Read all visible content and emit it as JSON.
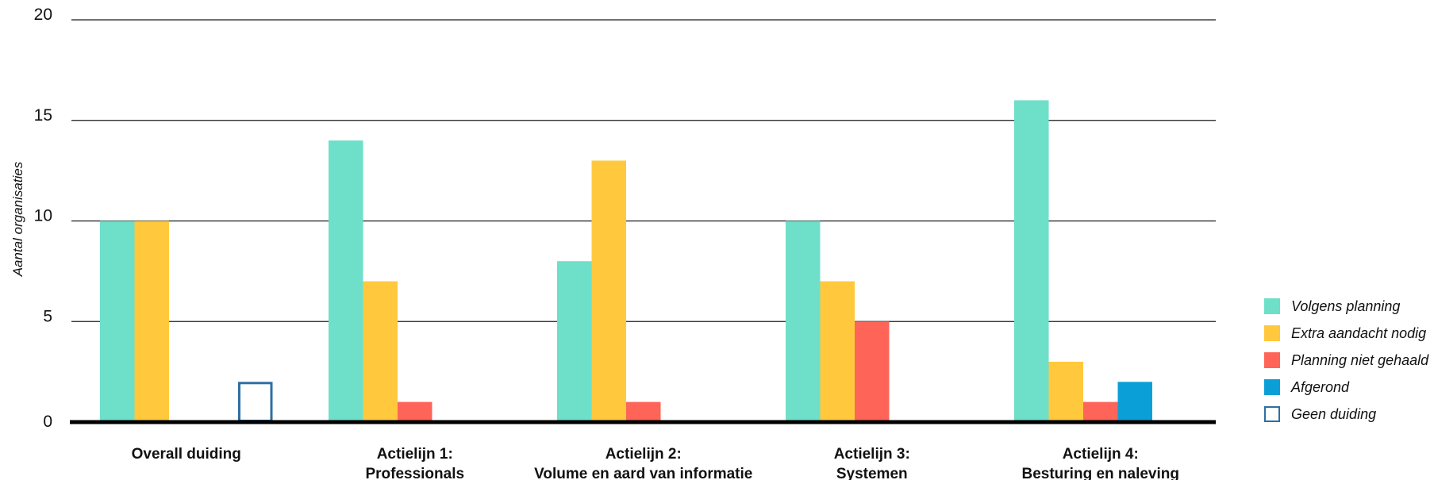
{
  "chart_data": {
    "type": "bar",
    "ylabel": "Aantal organisaties",
    "xlabel": "",
    "ylim": [
      0,
      20
    ],
    "yticks": [
      0,
      5,
      10,
      15,
      20
    ],
    "grid": true,
    "legend_position": "right",
    "categories": [
      [
        "Overall duiding"
      ],
      [
        "Actielijn 1:",
        "Professionals"
      ],
      [
        "Actielijn 2:",
        "Volume en aard van informatie"
      ],
      [
        "Actielijn 3:",
        "Systemen"
      ],
      [
        "Actielijn 4:",
        "Besturing en naleving"
      ]
    ],
    "series": [
      {
        "name": "Volgens planning",
        "color": "#6edfc9",
        "style": "filled",
        "values": [
          10,
          14,
          8,
          10,
          16
        ]
      },
      {
        "name": "Extra aandacht nodig",
        "color": "#ffc83d",
        "style": "filled",
        "values": [
          10,
          7,
          13,
          7,
          3
        ]
      },
      {
        "name": "Planning niet gehaald",
        "color": "#ff6459",
        "style": "filled",
        "values": [
          0,
          1,
          1,
          5,
          1
        ]
      },
      {
        "name": "Afgerond",
        "color": "#0b9fd8",
        "style": "filled",
        "values": [
          0,
          0,
          0,
          0,
          2
        ]
      },
      {
        "name": "Geen duiding",
        "color": "#2d6fa3",
        "style": "outline",
        "values": [
          2,
          0,
          0,
          0,
          0
        ]
      }
    ]
  }
}
